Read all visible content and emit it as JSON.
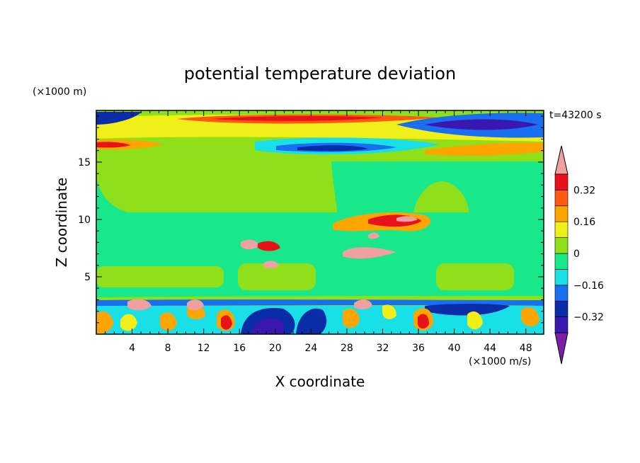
{
  "chart_data": {
    "type": "heatmap",
    "title": "potential temperature deviation",
    "xlabel": "X coordinate",
    "ylabel": "Z coordinate",
    "x_unit": "(×1000 m/s)",
    "y_unit": "(×1000 m)",
    "time_label": "t=43200 s",
    "xlim": [
      0,
      50
    ],
    "ylim": [
      0,
      19.5
    ],
    "x_ticks": [
      4,
      8,
      12,
      16,
      20,
      24,
      28,
      32,
      36,
      40,
      44,
      48
    ],
    "y_ticks": [
      5,
      10,
      15
    ],
    "colorbar": {
      "levels": [
        -0.4,
        -0.32,
        -0.24,
        -0.16,
        -0.08,
        0,
        0.08,
        0.16,
        0.24,
        0.32,
        0.4
      ],
      "tick_labels": [
        "0.32",
        "0.16",
        "0",
        "−0.16",
        "−0.32"
      ],
      "tick_values": [
        0.32,
        0.16,
        0,
        -0.16,
        -0.32
      ],
      "colors": [
        "#7b1fa8",
        "#3a18b0",
        "#0a2ca8",
        "#1a6ef0",
        "#19e0e6",
        "#18e88a",
        "#8fe01a",
        "#f0f018",
        "#ffa500",
        "#ff5a10",
        "#e8121a",
        "#f0a0a0"
      ],
      "extend": "both"
    }
  }
}
